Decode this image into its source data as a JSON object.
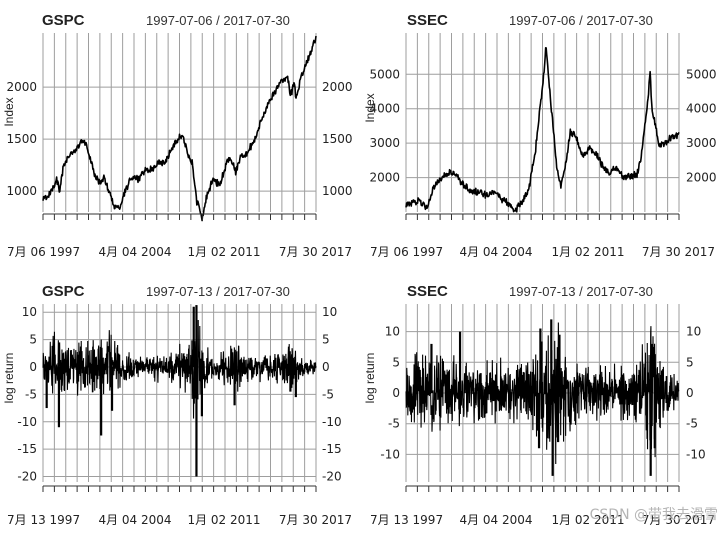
{
  "watermark": "CSDN @带我去滑雪",
  "colors": {
    "grid": "#9e9e9e",
    "line": "#000000",
    "axis": "#333333"
  },
  "chart_data": [
    {
      "type": "line",
      "title": "GSPC",
      "date_range": "1997-07-06 / 2017-07-30",
      "ylabel": "Index",
      "left_ticks": [
        "1000",
        "1500",
        "2000"
      ],
      "right_ticks": [
        "1000",
        "1500",
        "2000"
      ],
      "tick_values": [
        1000,
        1500,
        2000
      ],
      "ylim": [
        800,
        2520
      ],
      "x_labels": [
        "7月 06 1997",
        "4月 04 2004",
        "1月 02 2011",
        "7月 30 2017"
      ],
      "x_label_years": [
        1997.51,
        2004.26,
        2011.0,
        2017.58
      ],
      "xlim": [
        1997.51,
        2017.58
      ],
      "series": [
        {
          "name": "GSPC",
          "x": [
            1997.5,
            1998.0,
            1998.5,
            1998.75,
            1999.0,
            1999.5,
            2000.0,
            2000.3,
            2000.7,
            2001.0,
            2001.3,
            2001.7,
            2002.0,
            2002.5,
            2002.8,
            2003.2,
            2003.5,
            2004.0,
            2004.5,
            2005.0,
            2005.5,
            2006.0,
            2006.5,
            2007.0,
            2007.5,
            2007.8,
            2008.2,
            2008.5,
            2008.8,
            2009.0,
            2009.2,
            2009.5,
            2010.0,
            2010.5,
            2011.0,
            2011.3,
            2011.7,
            2012.0,
            2012.5,
            2013.0,
            2013.5,
            2014.0,
            2014.5,
            2015.0,
            2015.5,
            2015.7,
            2016.0,
            2016.1,
            2016.5,
            2017.0,
            2017.3,
            2017.58
          ],
          "values": [
            920,
            970,
            1120,
            1000,
            1230,
            1360,
            1400,
            1490,
            1450,
            1300,
            1160,
            1080,
            1130,
            950,
            840,
            850,
            990,
            1130,
            1120,
            1200,
            1210,
            1280,
            1270,
            1420,
            1520,
            1540,
            1330,
            1260,
            900,
            850,
            720,
            930,
            1120,
            1050,
            1270,
            1320,
            1180,
            1330,
            1360,
            1480,
            1650,
            1820,
            1950,
            2050,
            2100,
            1920,
            2050,
            1880,
            2100,
            2270,
            2380,
            2470
          ]
        }
      ]
    },
    {
      "type": "line",
      "title": "SSEC",
      "date_range": "1997-07-06 / 2017-07-30",
      "ylabel": "Index",
      "left_ticks": [
        "2000",
        "3000",
        "4000",
        "5000"
      ],
      "right_ticks": [
        "2000",
        "3000",
        "4000",
        "5000"
      ],
      "tick_values": [
        2000,
        3000,
        4000,
        5000
      ],
      "ylim": [
        1000,
        6200
      ],
      "x_labels": [
        "7月 06 1997",
        "4月 04 2004",
        "1月 02 2011",
        "7月 30 2017"
      ],
      "x_label_years": [
        1997.51,
        2004.26,
        2011.0,
        2017.58
      ],
      "xlim": [
        1997.51,
        2017.58
      ],
      "series": [
        {
          "name": "SSEC",
          "x": [
            1997.5,
            1998.0,
            1998.5,
            1999.0,
            1999.3,
            1999.5,
            2000.0,
            2000.5,
            2001.0,
            2001.5,
            2002.0,
            2002.5,
            2003.0,
            2003.5,
            2004.0,
            2004.5,
            2005.0,
            2005.5,
            2006.0,
            2006.5,
            2007.0,
            2007.3,
            2007.6,
            2007.8,
            2008.0,
            2008.3,
            2008.6,
            2008.9,
            2009.2,
            2009.6,
            2010.0,
            2010.5,
            2011.0,
            2011.5,
            2012.0,
            2012.5,
            2013.0,
            2013.5,
            2014.0,
            2014.5,
            2014.8,
            2015.0,
            2015.3,
            2015.45,
            2015.6,
            2015.9,
            2016.1,
            2016.5,
            2017.0,
            2017.58
          ],
          "values": [
            1200,
            1250,
            1350,
            1150,
            1400,
            1700,
            1900,
            2100,
            2150,
            1900,
            1700,
            1600,
            1550,
            1450,
            1600,
            1400,
            1250,
            1050,
            1250,
            1600,
            2700,
            3800,
            4800,
            5900,
            4800,
            3600,
            2300,
            1750,
            2300,
            3350,
            3200,
            2600,
            2850,
            2700,
            2300,
            2150,
            2300,
            2000,
            2050,
            2100,
            2600,
            3300,
            4300,
            5100,
            3900,
            3500,
            2900,
            3000,
            3150,
            3250
          ]
        }
      ]
    },
    {
      "type": "line",
      "title": "GSPC",
      "date_range": "1997-07-13 / 2017-07-30",
      "ylabel": "log return",
      "left_ticks": [
        "-20",
        "-15",
        "-10",
        "-5",
        "0",
        "5",
        "10"
      ],
      "right_ticks": [
        "-20",
        "-15",
        "-10",
        "-5",
        "0",
        "5",
        "10"
      ],
      "tick_values": [
        -20,
        -15,
        -10,
        -5,
        0,
        5,
        10
      ],
      "ylim": [
        -21,
        11.5
      ],
      "x_labels": [
        "7月 13 1997",
        "4月 04 2004",
        "1月 02 2011",
        "7月 30 2017"
      ],
      "x_label_years": [
        1997.53,
        2004.26,
        2011.0,
        2017.58
      ],
      "xlim": [
        1997.53,
        2017.58
      ],
      "volatility": {
        "x": [
          1997.5,
          1998.5,
          1999.0,
          2000.0,
          2001.0,
          2002.5,
          2003.5,
          2005.0,
          2007.0,
          2008.0,
          2008.7,
          2009.0,
          2009.5,
          2010.0,
          2011.0,
          2011.7,
          2012.0,
          2013.0,
          2014.0,
          2015.0,
          2015.7,
          2016.0,
          2017.0,
          2017.58
        ],
        "values": [
          2.5,
          3.5,
          3.0,
          3.0,
          3.5,
          4.0,
          2.0,
          1.2,
          2.0,
          3.0,
          6.0,
          5.5,
          3.0,
          2.0,
          2.5,
          3.5,
          2.0,
          1.5,
          1.5,
          2.0,
          3.0,
          2.5,
          1.0,
          1.0
        ]
      },
      "spikes": [
        {
          "x": 2008.8,
          "value": -20.0
        },
        {
          "x": 2008.8,
          "value": 11.3
        },
        {
          "x": 2008.6,
          "value": 11.0
        },
        {
          "x": 2009.2,
          "value": -9.0
        },
        {
          "x": 1998.7,
          "value": -11.0
        },
        {
          "x": 1997.8,
          "value": -7.5
        },
        {
          "x": 2001.8,
          "value": -12.5
        },
        {
          "x": 2002.6,
          "value": -8.0
        },
        {
          "x": 2011.6,
          "value": -7.0
        },
        {
          "x": 2015.7,
          "value": -4.5
        },
        {
          "x": 2016.1,
          "value": -5.5
        }
      ]
    },
    {
      "type": "line",
      "title": "SSEC",
      "date_range": "1997-07-13 / 2017-07-30",
      "ylabel": "log return",
      "left_ticks": [
        "-10",
        "-5",
        "0",
        "5",
        "10"
      ],
      "right_ticks": [
        "-10",
        "-5",
        "0",
        "5",
        "10"
      ],
      "tick_values": [
        -10,
        -5,
        0,
        5,
        10
      ],
      "ylim": [
        -14.5,
        14.5
      ],
      "x_labels": [
        "7月 13 1997",
        "4月 04 2004",
        "1月 02 2011",
        "7月 30 2017"
      ],
      "x_label_years": [
        1997.53,
        2004.26,
        2011.0,
        2017.58
      ],
      "xlim": [
        1997.53,
        2017.58
      ],
      "volatility": {
        "x": [
          1997.5,
          1998.5,
          1999.5,
          2000.5,
          2001.5,
          2002.5,
          2004.0,
          2005.5,
          2006.5,
          2007.0,
          2007.5,
          2008.0,
          2008.5,
          2009.0,
          2010.0,
          2011.0,
          2012.0,
          2013.0,
          2014.0,
          2015.0,
          2015.5,
          2016.0,
          2016.5,
          2017.58
        ],
        "values": [
          4.0,
          3.5,
          5.0,
          3.0,
          3.5,
          3.5,
          3.0,
          3.5,
          3.5,
          6.0,
          7.0,
          7.0,
          7.5,
          5.5,
          3.5,
          3.0,
          2.5,
          2.5,
          2.5,
          4.5,
          8.0,
          6.0,
          2.5,
          1.5
        ]
      },
      "spikes": [
        {
          "x": 1999.4,
          "value": 8.0
        },
        {
          "x": 2001.5,
          "value": 10.0
        },
        {
          "x": 2007.3,
          "value": -9.0
        },
        {
          "x": 2007.4,
          "value": 10.5
        },
        {
          "x": 2008.3,
          "value": -13.5
        },
        {
          "x": 2008.2,
          "value": 12.0
        },
        {
          "x": 2008.8,
          "value": 9.5
        },
        {
          "x": 2008.7,
          "value": -8.0
        },
        {
          "x": 2015.5,
          "value": -13.5
        },
        {
          "x": 2015.6,
          "value": 8.0
        },
        {
          "x": 2015.8,
          "value": -9.0
        }
      ]
    }
  ]
}
